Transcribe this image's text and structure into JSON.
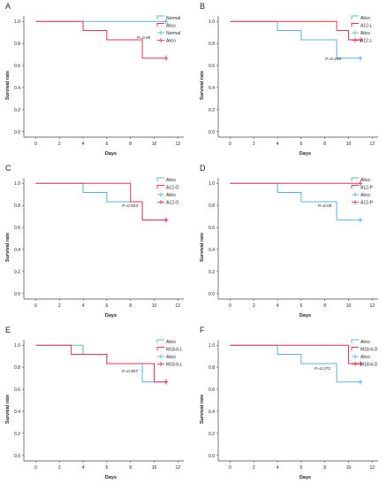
{
  "colors": {
    "blue": "#5bb0e0",
    "red": "#e8344e",
    "axis": "#444444",
    "text": "#222222"
  },
  "chart_data": [
    {
      "panel": "A",
      "type": "line",
      "xlabel": "Days",
      "ylabel": "Survival rate",
      "xticks": [
        0,
        2,
        4,
        6,
        8,
        10,
        12
      ],
      "yticks": [
        "0.0",
        "0.2",
        "0.4",
        "0.6",
        "0.8",
        "1.0"
      ],
      "xlim": [
        -1,
        12.5
      ],
      "ylim": [
        -0.05,
        1.05
      ],
      "pvalue": "P=0.05",
      "legend": [
        {
          "label": "Normal",
          "type": "line",
          "color": "#5bb0e0"
        },
        {
          "label": "Alico",
          "type": "line",
          "color": "#e8344e"
        },
        {
          "label": "Normal",
          "type": "censor",
          "color": "#5bb0e0"
        },
        {
          "label": "Alico",
          "type": "censor",
          "color": "#e8344e"
        }
      ],
      "series": [
        {
          "name": "Normal",
          "color": "#5bb0e0",
          "points": [
            [
              0,
              1.0
            ],
            [
              11,
              1.0
            ]
          ],
          "censor": [
            [
              11,
              1.0
            ]
          ]
        },
        {
          "name": "Alico",
          "color": "#e8344e",
          "points": [
            [
              0,
              1.0
            ],
            [
              4,
              1.0
            ],
            [
              4,
              0.917
            ],
            [
              6,
              0.917
            ],
            [
              6,
              0.833
            ],
            [
              9,
              0.833
            ],
            [
              9,
              0.667
            ],
            [
              11,
              0.667
            ]
          ],
          "censor": [
            [
              11,
              0.667
            ]
          ]
        }
      ]
    },
    {
      "panel": "B",
      "type": "line",
      "xlabel": "Days",
      "ylabel": "Survival rate",
      "xticks": [
        0,
        2,
        4,
        6,
        8,
        10,
        12
      ],
      "yticks": [
        "0.0",
        "0.2",
        "0.4",
        "0.6",
        "0.8",
        "1.0"
      ],
      "xlim": [
        -1,
        12.5
      ],
      "ylim": [
        -0.05,
        1.05
      ],
      "pvalue": "P=0.299",
      "legend": [
        {
          "label": "Alico",
          "type": "line",
          "color": "#5bb0e0"
        },
        {
          "label": "A12-L",
          "type": "line",
          "color": "#e8344e"
        },
        {
          "label": "Alico",
          "type": "censor",
          "color": "#5bb0e0"
        },
        {
          "label": "A12-L",
          "type": "censor",
          "color": "#e8344e"
        }
      ],
      "series": [
        {
          "name": "Alico",
          "color": "#5bb0e0",
          "points": [
            [
              0,
              1.0
            ],
            [
              4,
              1.0
            ],
            [
              4,
              0.917
            ],
            [
              6,
              0.917
            ],
            [
              6,
              0.833
            ],
            [
              9,
              0.833
            ],
            [
              9,
              0.667
            ],
            [
              11,
              0.667
            ]
          ],
          "censor": [
            [
              11,
              0.667
            ]
          ]
        },
        {
          "name": "A12-L",
          "color": "#e8344e",
          "points": [
            [
              0,
              1.0
            ],
            [
              9,
              1.0
            ],
            [
              9,
              0.917
            ],
            [
              10,
              0.917
            ],
            [
              10,
              0.833
            ],
            [
              11,
              0.833
            ]
          ],
          "censor": [
            [
              11,
              0.833
            ]
          ]
        }
      ]
    },
    {
      "panel": "C",
      "type": "line",
      "xlabel": "Days",
      "ylabel": "Survival rate",
      "xticks": [
        0,
        2,
        4,
        6,
        8,
        10,
        12
      ],
      "yticks": [
        "0.0",
        "0.2",
        "0.4",
        "0.6",
        "0.8",
        "1.0"
      ],
      "xlim": [
        -1,
        12.5
      ],
      "ylim": [
        -0.05,
        1.05
      ],
      "pvalue": "P=0.933",
      "legend": [
        {
          "label": "Alico",
          "type": "line",
          "color": "#5bb0e0"
        },
        {
          "label": "A12-O",
          "type": "line",
          "color": "#e8344e"
        },
        {
          "label": "Alico",
          "type": "censor",
          "color": "#5bb0e0"
        },
        {
          "label": "A12-O",
          "type": "censor",
          "color": "#e8344e"
        }
      ],
      "series": [
        {
          "name": "Alico",
          "color": "#5bb0e0",
          "points": [
            [
              0,
              1.0
            ],
            [
              4,
              1.0
            ],
            [
              4,
              0.917
            ],
            [
              6,
              0.917
            ],
            [
              6,
              0.833
            ],
            [
              9,
              0.833
            ],
            [
              9,
              0.667
            ],
            [
              11,
              0.667
            ]
          ],
          "censor": [
            [
              11,
              0.667
            ]
          ]
        },
        {
          "name": "A12-O",
          "color": "#e8344e",
          "points": [
            [
              0,
              1.0
            ],
            [
              8,
              1.0
            ],
            [
              8,
              0.833
            ],
            [
              9,
              0.833
            ],
            [
              9,
              0.667
            ],
            [
              11,
              0.667
            ]
          ],
          "censor": [
            [
              11,
              0.667
            ]
          ]
        }
      ]
    },
    {
      "panel": "D",
      "type": "line",
      "xlabel": "Days",
      "ylabel": "Survival rate",
      "xticks": [
        0,
        2,
        4,
        6,
        8,
        10,
        12
      ],
      "yticks": [
        "0.0",
        "0.2",
        "0.4",
        "0.6",
        "0.8",
        "1.0"
      ],
      "xlim": [
        -1,
        12.5
      ],
      "ylim": [
        -0.05,
        1.05
      ],
      "pvalue": "P=0.05",
      "legend": [
        {
          "label": "Alico",
          "type": "line",
          "color": "#5bb0e0"
        },
        {
          "label": "A12-P",
          "type": "line",
          "color": "#e8344e"
        },
        {
          "label": "Alico",
          "type": "censor",
          "color": "#5bb0e0"
        },
        {
          "label": "A12-P",
          "type": "censor",
          "color": "#e8344e"
        }
      ],
      "series": [
        {
          "name": "Alico",
          "color": "#5bb0e0",
          "points": [
            [
              0,
              1.0
            ],
            [
              4,
              1.0
            ],
            [
              4,
              0.917
            ],
            [
              6,
              0.917
            ],
            [
              6,
              0.833
            ],
            [
              9,
              0.833
            ],
            [
              9,
              0.667
            ],
            [
              11,
              0.667
            ]
          ],
          "censor": [
            [
              11,
              0.667
            ]
          ]
        },
        {
          "name": "A12-P",
          "color": "#e8344e",
          "points": [
            [
              0,
              1.0
            ],
            [
              11,
              1.0
            ]
          ],
          "censor": [
            [
              11,
              1.0
            ]
          ]
        }
      ]
    },
    {
      "panel": "E",
      "type": "line",
      "xlabel": "Days",
      "ylabel": "Survival rate",
      "xticks": [
        0,
        2,
        4,
        6,
        8,
        10,
        12
      ],
      "yticks": [
        "0.0",
        "0.2",
        "0.4",
        "0.6",
        "0.8",
        "1.0"
      ],
      "xlim": [
        -1,
        12.5
      ],
      "ylim": [
        -0.05,
        1.05
      ],
      "pvalue": "P=0.907",
      "legend": [
        {
          "label": "Alico",
          "type": "line",
          "color": "#5bb0e0"
        },
        {
          "label": "M18-6-L",
          "type": "line",
          "color": "#e8344e"
        },
        {
          "label": "Alico",
          "type": "censor",
          "color": "#5bb0e0"
        },
        {
          "label": "M18-6-L",
          "type": "censor",
          "color": "#e8344e"
        }
      ],
      "series": [
        {
          "name": "Alico",
          "color": "#5bb0e0",
          "points": [
            [
              0,
              1.0
            ],
            [
              4,
              1.0
            ],
            [
              4,
              0.917
            ],
            [
              6,
              0.917
            ],
            [
              6,
              0.833
            ],
            [
              9,
              0.833
            ],
            [
              9,
              0.667
            ],
            [
              11,
              0.667
            ]
          ],
          "censor": [
            [
              11,
              0.667
            ]
          ]
        },
        {
          "name": "M18-6-L",
          "color": "#e8344e",
          "points": [
            [
              0,
              1.0
            ],
            [
              3,
              1.0
            ],
            [
              3,
              0.917
            ],
            [
              6,
              0.917
            ],
            [
              6,
              0.833
            ],
            [
              10,
              0.833
            ],
            [
              10,
              0.667
            ],
            [
              11,
              0.667
            ]
          ],
          "censor": [
            [
              11,
              0.667
            ]
          ]
        }
      ]
    },
    {
      "panel": "F",
      "type": "line",
      "xlabel": "Days",
      "ylabel": "Survival rate",
      "xticks": [
        0,
        2,
        4,
        6,
        8,
        10,
        12
      ],
      "yticks": [
        "0.0",
        "0.2",
        "0.4",
        "0.6",
        "0.8",
        "1.0"
      ],
      "xlim": [
        -1,
        12.5
      ],
      "ylim": [
        -0.05,
        1.05
      ],
      "pvalue": "P=0.272",
      "legend": [
        {
          "label": "Alico",
          "type": "line",
          "color": "#5bb0e0"
        },
        {
          "label": "M18-6-D",
          "type": "line",
          "color": "#e8344e"
        },
        {
          "label": "Alico",
          "type": "censor",
          "color": "#5bb0e0"
        },
        {
          "label": "M18-6-D",
          "type": "censor",
          "color": "#e8344e"
        }
      ],
      "series": [
        {
          "name": "Alico",
          "color": "#5bb0e0",
          "points": [
            [
              0,
              1.0
            ],
            [
              4,
              1.0
            ],
            [
              4,
              0.917
            ],
            [
              6,
              0.917
            ],
            [
              6,
              0.833
            ],
            [
              9,
              0.833
            ],
            [
              9,
              0.667
            ],
            [
              11,
              0.667
            ]
          ],
          "censor": [
            [
              11,
              0.667
            ]
          ]
        },
        {
          "name": "M18-6-D",
          "color": "#e8344e",
          "points": [
            [
              0,
              1.0
            ],
            [
              10,
              1.0
            ],
            [
              10,
              0.833
            ],
            [
              11,
              0.833
            ]
          ],
          "censor": [
            [
              11,
              0.833
            ]
          ]
        }
      ]
    }
  ]
}
